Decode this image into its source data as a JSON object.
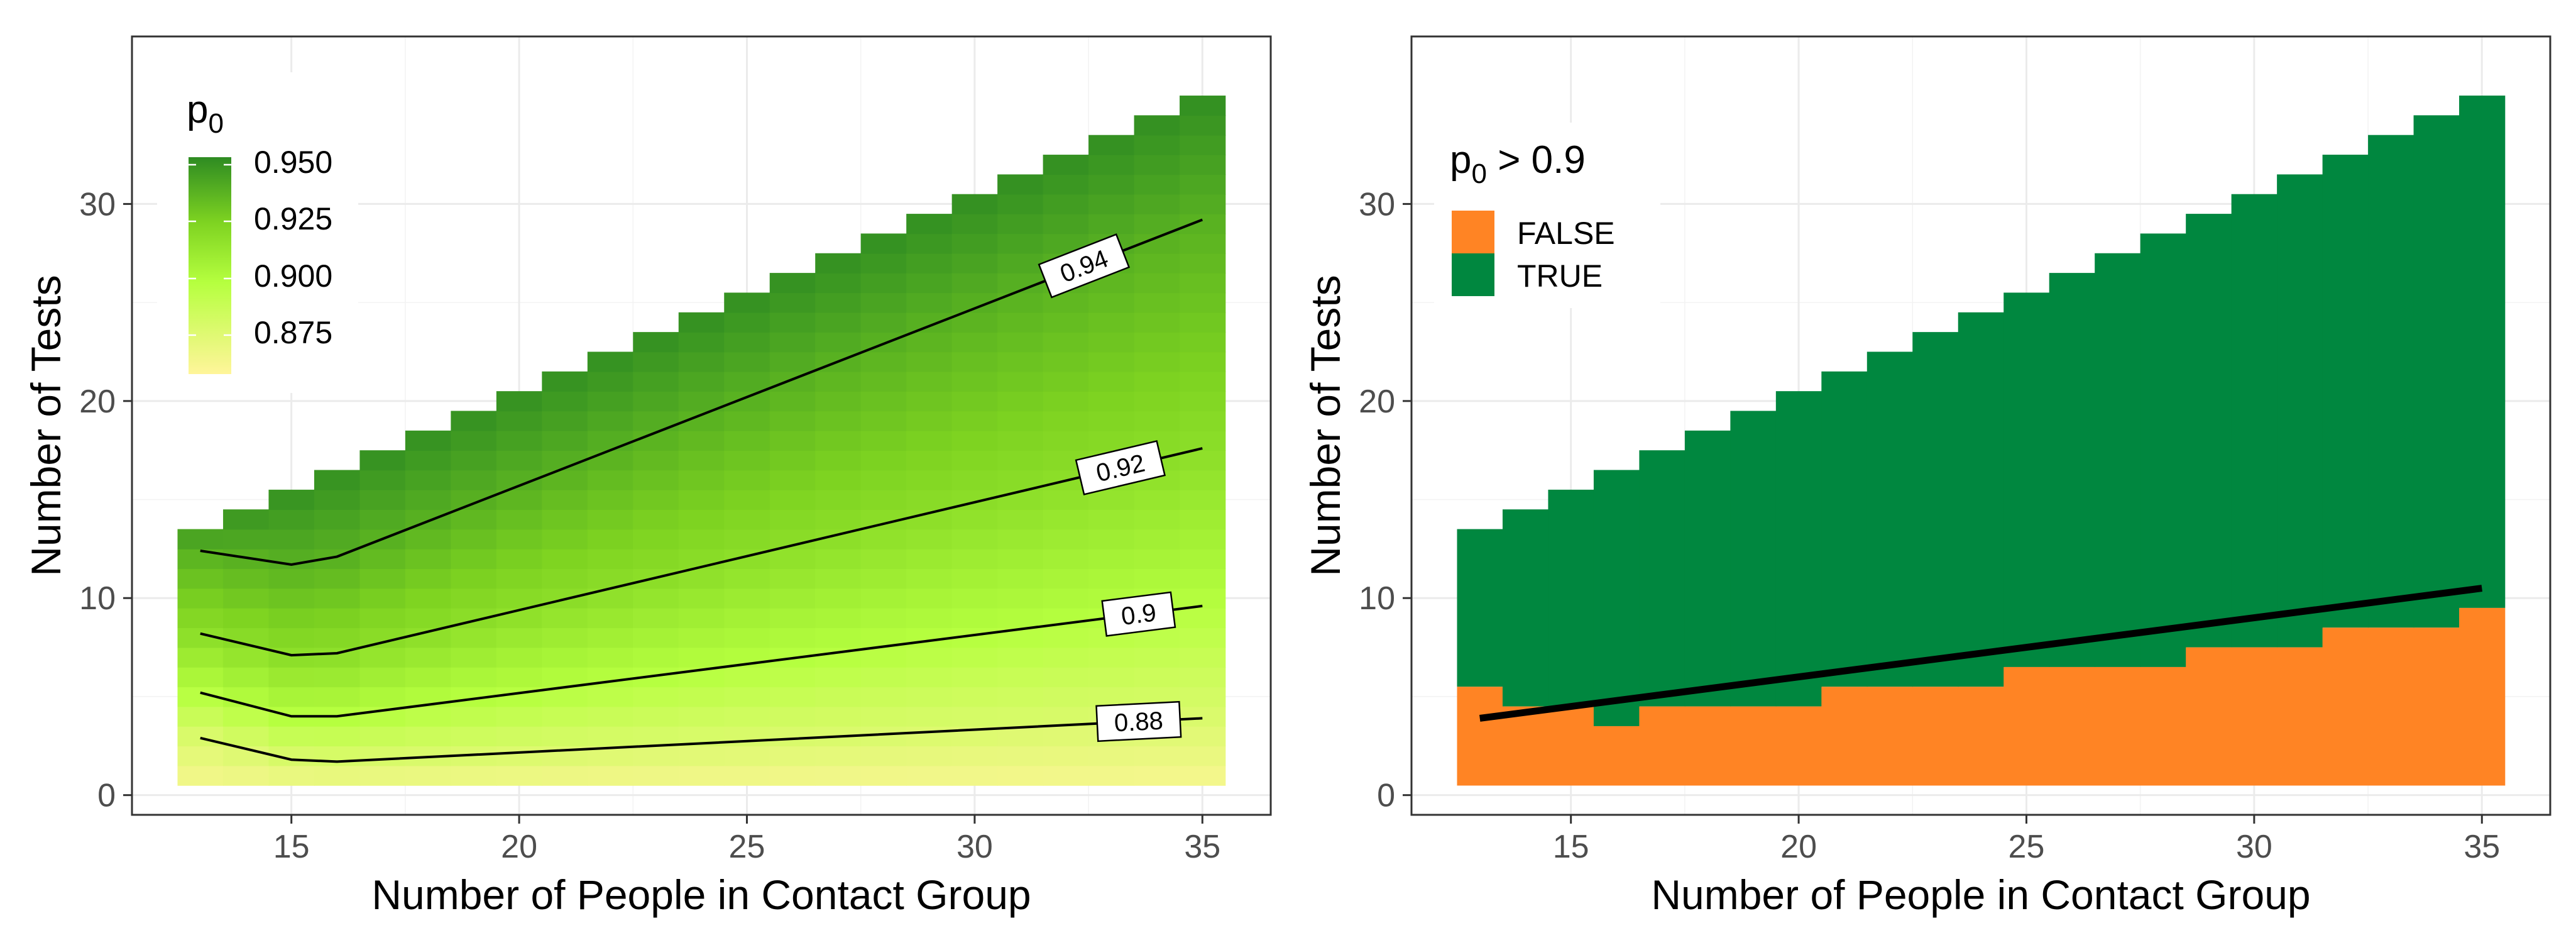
{
  "chart_data": [
    {
      "type": "heatmap",
      "panel": "left",
      "xlabel": "Number of People in Contact Group",
      "ylabel": "Number of Tests",
      "xlim": [
        11.5,
        36.5
      ],
      "ylim": [
        -1,
        38.5
      ],
      "xticks": [
        15,
        20,
        25,
        30,
        35
      ],
      "yticks": [
        0,
        10,
        20,
        30
      ],
      "grid": true,
      "x_range": [
        13,
        35
      ],
      "max_tests": "x + 0 (tests from 1 to number of people)",
      "fill_variable": "p0",
      "fill_range": [
        0.86,
        0.955
      ],
      "legend": {
        "title": "p",
        "title_subscript": "0",
        "position": "top-left",
        "breaks": [
          "0.950",
          "0.925",
          "0.900",
          "0.875"
        ],
        "colors": [
          "#2E8B22",
          "#7ED321",
          "#B6FF3F",
          "#FFF59A"
        ]
      },
      "contours": [
        {
          "level": "0.94",
          "x": [
            13,
            15,
            16,
            35
          ],
          "y": [
            12.4,
            11.7,
            12.1,
            29.2
          ]
        },
        {
          "level": "0.92",
          "x": [
            13,
            15,
            16,
            35
          ],
          "y": [
            8.2,
            7.1,
            7.2,
            17.6
          ]
        },
        {
          "level": "0.9",
          "x": [
            13,
            15,
            16,
            35
          ],
          "y": [
            5.2,
            4.0,
            4.0,
            9.6
          ]
        },
        {
          "level": "0.88",
          "x": [
            13,
            15,
            16,
            35
          ],
          "y": [
            2.9,
            1.8,
            1.7,
            3.9
          ]
        }
      ]
    },
    {
      "type": "heatmap",
      "panel": "right",
      "xlabel": "Number of People in Contact Group",
      "ylabel": "Number of Tests",
      "xlim": [
        11.5,
        36.5
      ],
      "ylim": [
        -1,
        38.5
      ],
      "xticks": [
        15,
        20,
        25,
        30,
        35
      ],
      "yticks": [
        0,
        10,
        20,
        30
      ],
      "grid": true,
      "fill_variable": "p0 > 0.9",
      "legend": {
        "title": "p",
        "title_subscript": "0",
        "title_suffix": " > 0.9",
        "position": "top-left",
        "entries": [
          {
            "label": "FALSE",
            "color": "#FF8424"
          },
          {
            "label": "TRUE",
            "color": "#00873F"
          }
        ]
      },
      "false_upper_tests": [
        5,
        4,
        4,
        3,
        4,
        4,
        4,
        4,
        5,
        5,
        5,
        5,
        6,
        6,
        6,
        6,
        7,
        7,
        7,
        8,
        8,
        8,
        9
      ],
      "threshold_line": {
        "x": [
          13,
          35
        ],
        "y": [
          3.9,
          10.5
        ],
        "color": "#000000"
      }
    }
  ]
}
